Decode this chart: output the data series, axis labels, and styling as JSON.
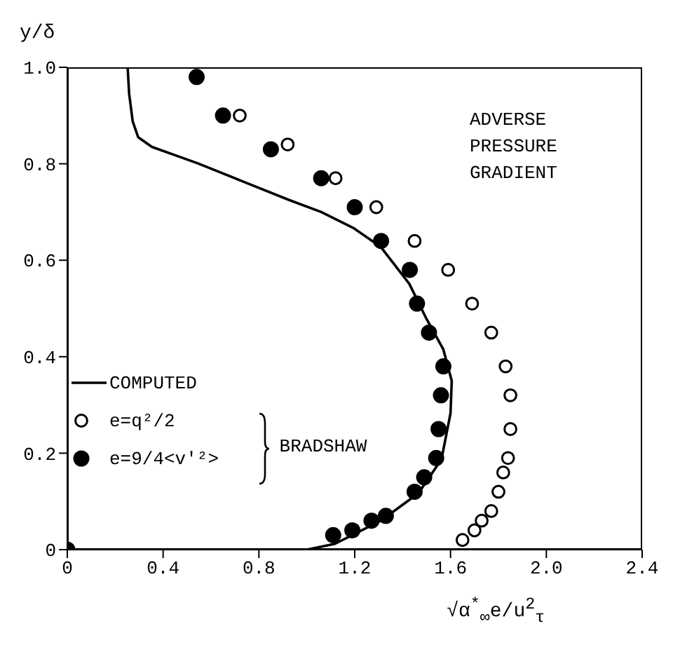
{
  "chart_data": {
    "type": "scatter",
    "xlabel": "√α$^{*}$$_{∞}$e/u$^{2}$$_{τ}$",
    "ylabel": "y/δ",
    "xlim": [
      0,
      2.4
    ],
    "xticks": [
      0,
      0.4,
      0.8,
      1.2,
      1.6,
      {
        "value": 2,
        "label": "2.0"
      },
      2.4
    ],
    "ylim": [
      0,
      1
    ],
    "yticks": [
      0,
      0.2,
      0.4,
      0.6,
      0.8,
      {
        "value": 1,
        "label": "1.0"
      }
    ],
    "grid": false,
    "legend": "left",
    "annotations": [
      "ADVERSE PRESSURE GRADIENT",
      "BRADSHAW"
    ],
    "series": [
      {
        "name": "COMPUTED",
        "type": "line",
        "marker": "none",
        "line_style": "solid",
        "color": "#000000",
        "x": [
          1.0,
          1.117,
          1.309,
          1.466,
          1.562,
          1.6,
          1.605,
          1.57,
          1.499,
          1.428,
          1.308,
          1.194,
          1.06,
          0.926,
          0.735,
          0.544,
          0.353,
          0.296,
          0.273,
          0.258,
          0.252
        ],
        "values": [
          0,
          0.012,
          0.06,
          0.117,
          0.187,
          0.283,
          0.35,
          0.415,
          0.479,
          0.551,
          0.628,
          0.667,
          0.7,
          0.725,
          0.763,
          0.801,
          0.835,
          0.855,
          0.888,
          0.946,
          1.0
        ]
      },
      {
        "name": "e=q²/2",
        "marker": "circle",
        "color": "#000000",
        "x": [
          0.72,
          0.92,
          1.12,
          1.29,
          1.45,
          1.59,
          1.69,
          1.77,
          1.83,
          1.85,
          1.85,
          1.84,
          1.82,
          1.8,
          1.77,
          1.73,
          1.7,
          1.65
        ],
        "values": [
          0.9,
          0.84,
          0.77,
          0.71,
          0.64,
          0.58,
          0.51,
          0.45,
          0.38,
          0.32,
          0.25,
          0.19,
          0.16,
          0.12,
          0.08,
          0.06,
          0.04,
          0.02
        ]
      },
      {
        "name": "e=9/4<v'²>",
        "marker": "circle",
        "color": "#000000",
        "x": [
          0.54,
          0.65,
          0.85,
          1.06,
          1.2,
          1.31,
          1.43,
          1.46,
          1.51,
          1.57,
          1.56,
          1.55,
          1.54,
          1.49,
          1.45,
          1.33,
          1.27,
          1.19,
          1.11,
          0
        ],
        "values": [
          0.98,
          0.9,
          0.83,
          0.77,
          0.71,
          0.64,
          0.58,
          0.51,
          0.45,
          0.38,
          0.32,
          0.25,
          0.19,
          0.15,
          0.12,
          0.07,
          0.06,
          0.04,
          0.03,
          0
        ]
      }
    ]
  }
}
